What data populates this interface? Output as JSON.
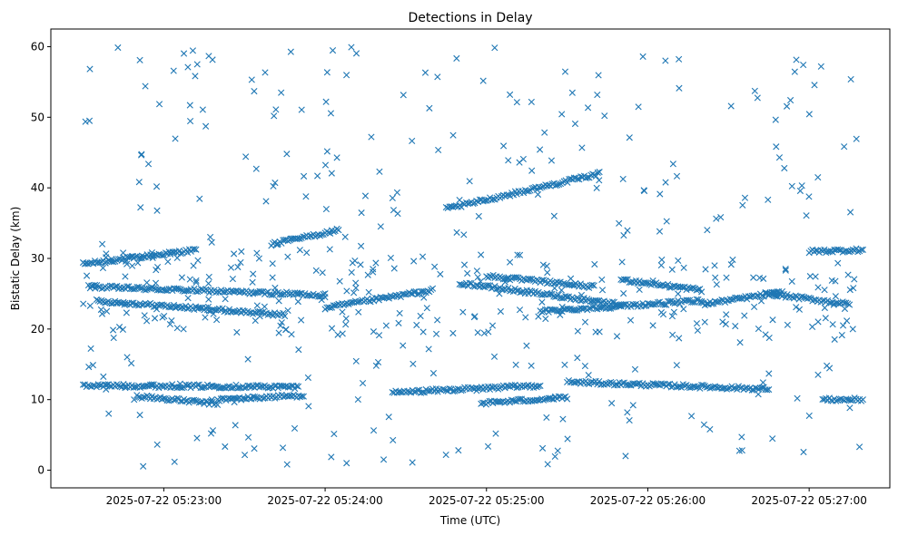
{
  "chart_data": {
    "type": "scatter",
    "title": "Detections in Delay",
    "xlabel": "Time (UTC)",
    "ylabel": "Bistatic Delay (km)",
    "x_axis_type": "time",
    "xlim": [
      "2025-07-22 05:22:18",
      "2025-07-22 05:27:30"
    ],
    "ylim": [
      -2.5,
      62.5
    ],
    "x_ticks": [
      "2025-07-22 05:23:00",
      "2025-07-22 05:24:00",
      "2025-07-22 05:25:00",
      "2025-07-22 05:26:00",
      "2025-07-22 05:27:00"
    ],
    "y_ticks": [
      0,
      10,
      20,
      30,
      40,
      50,
      60
    ],
    "marker": "x",
    "color": "#1f77b4",
    "grid": false,
    "legend": "none",
    "series": [
      {
        "tracks": [
          {
            "start": [
              "2025-07-22 05:22:30",
              29.2
            ],
            "end": [
              "2025-07-22 05:23:12",
              31.2
            ]
          },
          {
            "start": [
              "2025-07-22 05:22:32",
              26.0
            ],
            "end": [
              "2025-07-22 05:24:00",
              24.8
            ]
          },
          {
            "start": [
              "2025-07-22 05:22:35",
              24.0
            ],
            "end": [
              "2025-07-22 05:23:45",
              22.0
            ]
          },
          {
            "start": [
              "2025-07-22 05:22:30",
              12.0
            ],
            "end": [
              "2025-07-22 05:23:50",
              11.8
            ]
          },
          {
            "start": [
              "2025-07-22 05:22:50",
              10.5
            ],
            "end": [
              "2025-07-22 05:23:20",
              9.4
            ]
          },
          {
            "start": [
              "2025-07-22 05:23:20",
              10.0
            ],
            "end": [
              "2025-07-22 05:23:52",
              10.6
            ]
          },
          {
            "start": [
              "2025-07-22 05:23:40",
              32.0
            ],
            "end": [
              "2025-07-22 05:24:05",
              34.0
            ]
          },
          {
            "start": [
              "2025-07-22 05:24:00",
              23.0
            ],
            "end": [
              "2025-07-22 05:24:40",
              25.5
            ]
          },
          {
            "start": [
              "2025-07-22 05:24:25",
              11.0
            ],
            "end": [
              "2025-07-22 05:25:20",
              12.0
            ]
          },
          {
            "start": [
              "2025-07-22 05:24:58",
              9.5
            ],
            "end": [
              "2025-07-22 05:25:30",
              10.3
            ]
          },
          {
            "start": [
              "2025-07-22 05:24:45",
              37.0
            ],
            "end": [
              "2025-07-22 05:25:42",
              42.0
            ]
          },
          {
            "start": [
              "2025-07-22 05:24:50",
              26.5
            ],
            "end": [
              "2025-07-22 05:25:50",
              23.5
            ]
          },
          {
            "start": [
              "2025-07-22 05:25:00",
              27.5
            ],
            "end": [
              "2025-07-22 05:25:40",
              26.0
            ]
          },
          {
            "start": [
              "2025-07-22 05:25:20",
              22.5
            ],
            "end": [
              "2025-07-22 05:26:20",
              24.0
            ]
          },
          {
            "start": [
              "2025-07-22 05:25:50",
              27.0
            ],
            "end": [
              "2025-07-22 05:26:20",
              25.5
            ]
          },
          {
            "start": [
              "2025-07-22 05:25:30",
              12.5
            ],
            "end": [
              "2025-07-22 05:26:45",
              11.5
            ]
          },
          {
            "start": [
              "2025-07-22 05:26:20",
              23.5
            ],
            "end": [
              "2025-07-22 05:26:50",
              25.2
            ]
          },
          {
            "start": [
              "2025-07-22 05:26:45",
              25.0
            ],
            "end": [
              "2025-07-22 05:27:15",
              23.5
            ]
          },
          {
            "start": [
              "2025-07-22 05:27:00",
              31.0
            ],
            "end": [
              "2025-07-22 05:27:20",
              31.2
            ]
          },
          {
            "start": [
              "2025-07-22 05:27:05",
              10.0
            ],
            "end": [
              "2025-07-22 05:27:20",
              10.0
            ]
          }
        ],
        "clutter_count": 520
      }
    ]
  }
}
